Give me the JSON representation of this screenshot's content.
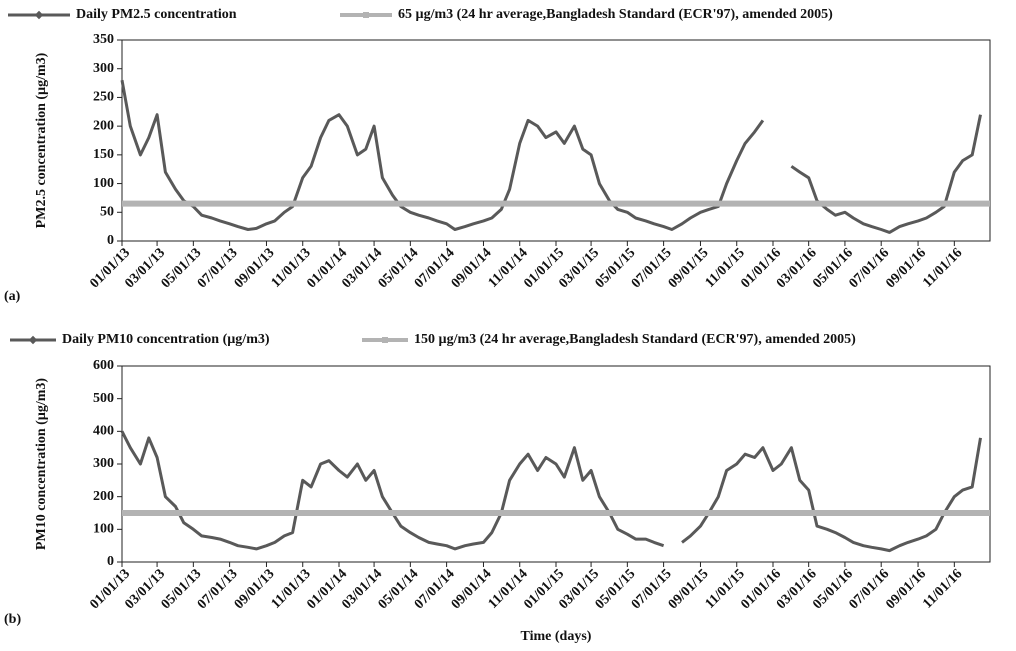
{
  "chart_data": [
    {
      "type": "line",
      "legend_position": "top",
      "ylabel": "PM2.5 concentration (µg/m3)",
      "panel_label": "(a)",
      "x": [
        "01/01/13",
        "01/15/13",
        "02/01/13",
        "02/15/13",
        "03/01/13",
        "03/15/13",
        "04/01/13",
        "04/15/13",
        "05/01/13",
        "05/15/13",
        "06/01/13",
        "06/15/13",
        "07/01/13",
        "07/15/13",
        "08/01/13",
        "08/15/13",
        "09/01/13",
        "09/15/13",
        "10/01/13",
        "10/15/13",
        "11/01/13",
        "11/15/13",
        "12/01/13",
        "12/15/13",
        "01/01/14",
        "01/15/14",
        "02/01/14",
        "02/15/14",
        "03/01/14",
        "03/15/14",
        "04/01/14",
        "04/15/14",
        "05/01/14",
        "05/15/14",
        "06/01/14",
        "06/15/14",
        "07/01/14",
        "07/15/14",
        "08/01/14",
        "08/15/14",
        "09/01/14",
        "09/15/14",
        "10/01/14",
        "10/15/14",
        "11/01/14",
        "11/15/14",
        "12/01/14",
        "12/15/14",
        "01/01/15",
        "01/15/15",
        "02/01/15",
        "02/15/15",
        "03/01/15",
        "03/15/15",
        "04/01/15",
        "04/15/15",
        "05/01/15",
        "05/15/15",
        "06/01/15",
        "06/15/15",
        "07/01/15",
        "07/15/15",
        "08/01/15",
        "08/15/15",
        "09/01/15",
        "09/15/15",
        "10/01/15",
        "10/15/15",
        "11/01/15",
        "11/15/15",
        "12/01/15",
        "12/15/15",
        "01/01/16",
        "01/15/16",
        "02/01/16",
        "02/15/16",
        "03/01/16",
        "03/15/16",
        "04/01/16",
        "04/15/16",
        "05/01/16",
        "05/15/16",
        "06/01/16",
        "06/15/16",
        "07/01/16",
        "07/15/16",
        "08/01/16",
        "08/15/16",
        "09/01/16",
        "09/15/16",
        "10/01/16",
        "10/15/16",
        "11/01/16",
        "11/15/16",
        "12/01/16",
        "12/15/16"
      ],
      "series": [
        {
          "name": "Daily PM2.5 concentration",
          "color": "#595959",
          "values": [
            280,
            200,
            150,
            180,
            220,
            120,
            90,
            70,
            60,
            45,
            40,
            35,
            30,
            25,
            20,
            22,
            30,
            35,
            50,
            60,
            110,
            130,
            180,
            210,
            220,
            200,
            150,
            160,
            200,
            110,
            80,
            60,
            50,
            45,
            40,
            35,
            30,
            20,
            25,
            30,
            35,
            40,
            55,
            90,
            170,
            210,
            200,
            180,
            190,
            170,
            200,
            160,
            150,
            100,
            70,
            55,
            50,
            40,
            35,
            30,
            25,
            20,
            30,
            40,
            50,
            55,
            60,
            100,
            140,
            170,
            190,
            210,
            null,
            null,
            130,
            120,
            110,
            70,
            55,
            45,
            50,
            40,
            30,
            25,
            20,
            15,
            25,
            30,
            35,
            40,
            50,
            60,
            120,
            140,
            150,
            220
          ]
        },
        {
          "name": "65 µg/m3 (24 hr average,Bangladesh Standard (ECR'97), amended 2005)",
          "color": "#b3b3b3",
          "reference": 65
        }
      ],
      "xlim": [
        "01/01/13",
        "12/31/16"
      ],
      "xticks": [
        "01/01/13",
        "03/01/13",
        "05/01/13",
        "07/01/13",
        "09/01/13",
        "11/01/13",
        "01/01/14",
        "03/01/14",
        "05/01/14",
        "07/01/14",
        "09/01/14",
        "11/01/14",
        "01/01/15",
        "03/01/15",
        "05/01/15",
        "07/01/15",
        "09/01/15",
        "11/01/15",
        "01/01/16",
        "03/01/16",
        "05/01/16",
        "07/01/16",
        "09/01/16",
        "11/01/16"
      ],
      "ylim": [
        0,
        350
      ],
      "yticks": [
        0,
        50,
        100,
        150,
        200,
        250,
        300,
        350
      ]
    },
    {
      "type": "line",
      "legend_position": "top",
      "ylabel": "PM10 concentration (µg/m3)",
      "panel_label": "(b)",
      "xlabel": "Time (days)",
      "x": [
        "01/01/13",
        "01/15/13",
        "02/01/13",
        "02/15/13",
        "03/01/13",
        "03/15/13",
        "04/01/13",
        "04/15/13",
        "05/01/13",
        "05/15/13",
        "06/01/13",
        "06/15/13",
        "07/01/13",
        "07/15/13",
        "08/01/13",
        "08/15/13",
        "09/01/13",
        "09/15/13",
        "10/01/13",
        "10/15/13",
        "11/01/13",
        "11/15/13",
        "12/01/13",
        "12/15/13",
        "01/01/14",
        "01/15/14",
        "02/01/14",
        "02/15/14",
        "03/01/14",
        "03/15/14",
        "04/01/14",
        "04/15/14",
        "05/01/14",
        "05/15/14",
        "06/01/14",
        "06/15/14",
        "07/01/14",
        "07/15/14",
        "08/01/14",
        "08/15/14",
        "09/01/14",
        "09/15/14",
        "10/01/14",
        "10/15/14",
        "11/01/14",
        "11/15/14",
        "12/01/14",
        "12/15/14",
        "01/01/15",
        "01/15/15",
        "02/01/15",
        "02/15/15",
        "03/01/15",
        "03/15/15",
        "04/01/15",
        "04/15/15",
        "05/01/15",
        "05/15/15",
        "06/01/15",
        "06/15/15",
        "07/01/15",
        "07/15/15",
        "08/01/15",
        "08/15/15",
        "09/01/15",
        "09/15/15",
        "10/01/15",
        "10/15/15",
        "11/01/15",
        "11/15/15",
        "12/01/15",
        "12/15/15",
        "01/01/16",
        "01/15/16",
        "02/01/16",
        "02/15/16",
        "03/01/16",
        "03/15/16",
        "04/01/16",
        "04/15/16",
        "05/01/16",
        "05/15/16",
        "06/01/16",
        "06/15/16",
        "07/01/16",
        "07/15/16",
        "08/01/16",
        "08/15/16",
        "09/01/16",
        "09/15/16",
        "10/01/16",
        "10/15/16",
        "11/01/16",
        "11/15/16",
        "12/01/16",
        "12/15/16"
      ],
      "series": [
        {
          "name": "Daily PM10 concentration (µg/m3)",
          "color": "#595959",
          "values": [
            400,
            350,
            300,
            380,
            320,
            200,
            170,
            120,
            100,
            80,
            75,
            70,
            60,
            50,
            45,
            40,
            50,
            60,
            80,
            90,
            250,
            230,
            300,
            310,
            280,
            260,
            300,
            250,
            280,
            200,
            150,
            110,
            90,
            75,
            60,
            55,
            50,
            40,
            50,
            55,
            60,
            90,
            150,
            250,
            300,
            330,
            280,
            320,
            300,
            260,
            350,
            250,
            280,
            200,
            150,
            100,
            85,
            70,
            70,
            60,
            50,
            null,
            60,
            80,
            110,
            150,
            200,
            280,
            300,
            330,
            320,
            350,
            280,
            300,
            350,
            250,
            220,
            110,
            100,
            90,
            75,
            60,
            50,
            45,
            40,
            35,
            50,
            60,
            70,
            80,
            100,
            150,
            200,
            220,
            230,
            380
          ]
        },
        {
          "name": "150 µg/m3 (24 hr average,Bangladesh Standard (ECR'97), amended 2005)",
          "color": "#b3b3b3",
          "reference": 150
        }
      ],
      "xlim": [
        "01/01/13",
        "12/31/16"
      ],
      "xticks": [
        "01/01/13",
        "03/01/13",
        "05/01/13",
        "07/01/13",
        "09/01/13",
        "11/01/13",
        "01/01/14",
        "03/01/14",
        "05/01/14",
        "07/01/14",
        "09/01/14",
        "11/01/14",
        "01/01/15",
        "03/01/15",
        "05/01/15",
        "07/01/15",
        "09/01/15",
        "11/01/15",
        "01/01/16",
        "03/01/16",
        "05/01/16",
        "07/01/16",
        "09/01/16",
        "11/01/16"
      ],
      "ylim": [
        0,
        600
      ],
      "yticks": [
        0,
        100,
        200,
        300,
        400,
        500,
        600
      ]
    }
  ]
}
